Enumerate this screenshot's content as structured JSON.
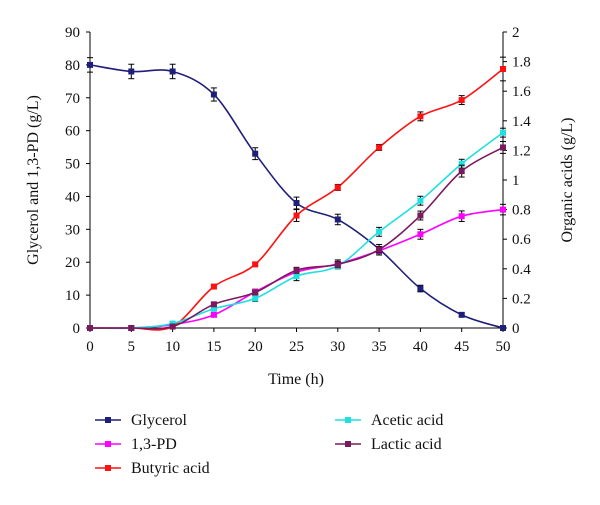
{
  "chart_data": {
    "type": "line",
    "xlabel": "Time (h)",
    "ylabel_left": "Glycerol and 1,3-PD (g/L)",
    "ylabel_right": "Organic acids (g/L)",
    "x": [
      0,
      5,
      10,
      15,
      20,
      25,
      30,
      35,
      40,
      45,
      50
    ],
    "xlim": [
      0,
      50
    ],
    "ylim_left": [
      0,
      90
    ],
    "ylim_right": [
      0,
      2
    ],
    "x_ticks": [
      "0",
      "5",
      "10",
      "15",
      "20",
      "25",
      "30",
      "35",
      "40",
      "45",
      "50"
    ],
    "y_left_ticks": [
      "0",
      "10",
      "20",
      "30",
      "40",
      "50",
      "60",
      "70",
      "80",
      "90"
    ],
    "y_right_ticks": [
      "0",
      "0.2",
      "0.4",
      "0.6",
      "0.8",
      "1",
      "1.2",
      "1.4",
      "1.6",
      "1.8",
      "2"
    ],
    "grid": false,
    "legend_position": "bottom",
    "series": [
      {
        "name": "Glycerol",
        "axis": "left",
        "color": "#1f1f7a",
        "marker": "square",
        "values": [
          80,
          78,
          78,
          71,
          53,
          38,
          33,
          24,
          12,
          4,
          0
        ],
        "errors": [
          2.2,
          2.2,
          2.2,
          2,
          1.8,
          1.8,
          1.6,
          1.4,
          1,
          0.6,
          0
        ]
      },
      {
        "name": "1,3-PD",
        "axis": "left",
        "color": "#ff00ff",
        "marker": "square",
        "values": [
          0,
          0,
          1,
          4,
          11,
          17,
          19.5,
          23.5,
          28.5,
          34,
          36
        ],
        "errors": [
          0,
          0,
          0,
          0.5,
          0.8,
          1.2,
          1.2,
          1.3,
          1.5,
          1.6,
          1.6
        ]
      },
      {
        "name": "Butyric acid",
        "axis": "right",
        "color": "#ff1111",
        "marker": "square",
        "values": [
          0,
          0,
          0.01,
          0.28,
          0.43,
          0.76,
          0.95,
          1.22,
          1.43,
          1.54,
          1.75
        ],
        "errors": [
          0,
          0,
          0,
          0.01,
          0.01,
          0.04,
          0.02,
          0.02,
          0.03,
          0.03,
          0.08
        ]
      },
      {
        "name": "Acetic acid",
        "axis": "right",
        "color": "#1ee0e0",
        "marker": "square",
        "values": [
          0,
          0,
          0.03,
          0.13,
          0.2,
          0.35,
          0.42,
          0.65,
          0.86,
          1.11,
          1.32
        ],
        "errors": [
          0,
          0,
          0,
          0.01,
          0.02,
          0.03,
          0.02,
          0.03,
          0.03,
          0.03,
          0.03
        ]
      },
      {
        "name": "Lactic acid",
        "axis": "right",
        "color": "#7a1a5e",
        "marker": "square",
        "values": [
          0,
          0,
          0.01,
          0.16,
          0.24,
          0.39,
          0.43,
          0.53,
          0.76,
          1.06,
          1.22
        ],
        "errors": [
          0,
          0,
          0,
          0.01,
          0.01,
          0.02,
          0.02,
          0.02,
          0.03,
          0.04,
          0.04
        ]
      }
    ],
    "legend": [
      {
        "label": "Glycerol",
        "color": "#1f1f7a"
      },
      {
        "label": "Acetic acid",
        "color": "#1ee0e0"
      },
      {
        "label": "1,3-PD",
        "color": "#ff00ff"
      },
      {
        "label": "Lactic acid",
        "color": "#7a1a5e"
      },
      {
        "label": "Butyric acid",
        "color": "#ff1111"
      }
    ]
  }
}
